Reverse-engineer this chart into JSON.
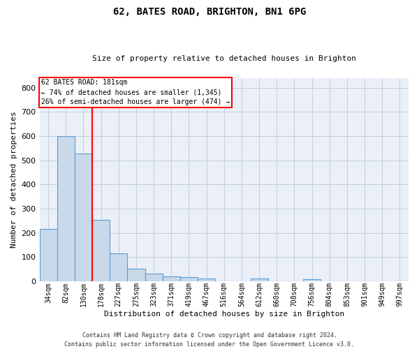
{
  "title_line1": "62, BATES ROAD, BRIGHTON, BN1 6PG",
  "title_line2": "Size of property relative to detached houses in Brighton",
  "xlabel": "Distribution of detached houses by size in Brighton",
  "ylabel": "Number of detached properties",
  "bar_color": "#c9d9ea",
  "bar_edge_color": "#5b9bd5",
  "grid_color": "#c0cde0",
  "background_color": "#eaeff8",
  "categories": [
    "34sqm",
    "82sqm",
    "130sqm",
    "178sqm",
    "227sqm",
    "275sqm",
    "323sqm",
    "371sqm",
    "419sqm",
    "467sqm",
    "516sqm",
    "564sqm",
    "612sqm",
    "660sqm",
    "708sqm",
    "756sqm",
    "804sqm",
    "853sqm",
    "901sqm",
    "949sqm",
    "997sqm"
  ],
  "values": [
    215,
    600,
    527,
    255,
    115,
    52,
    31,
    21,
    16,
    10,
    0,
    0,
    10,
    0,
    0,
    8,
    0,
    0,
    0,
    0,
    0
  ],
  "ylim": [
    0,
    840
  ],
  "yticks": [
    0,
    100,
    200,
    300,
    400,
    500,
    600,
    700,
    800
  ],
  "property_label": "62 BATES ROAD: 181sqm",
  "annotation_line1": "← 74% of detached houses are smaller (1,345)",
  "annotation_line2": "26% of semi-detached houses are larger (474) →",
  "vline_x": 2.5,
  "footer_line1": "Contains HM Land Registry data © Crown copyright and database right 2024.",
  "footer_line2": "Contains public sector information licensed under the Open Government Licence v3.0."
}
